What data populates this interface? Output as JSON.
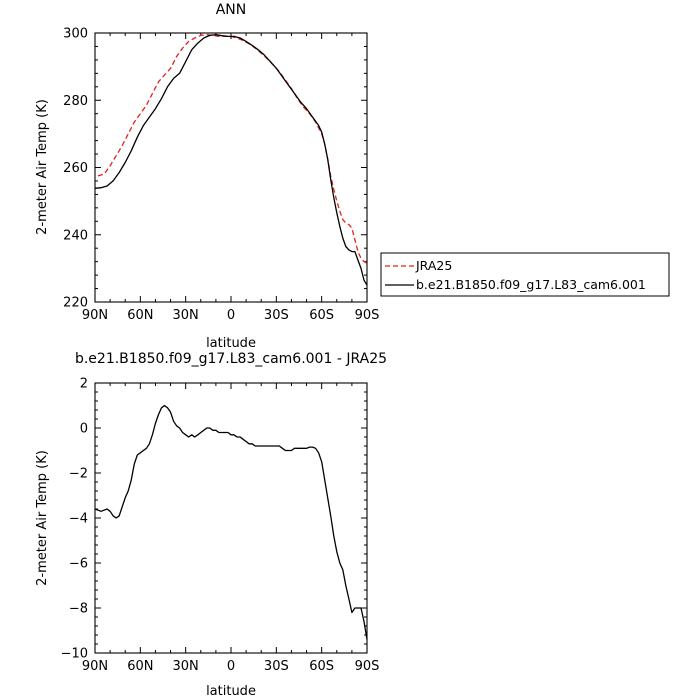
{
  "chart_data": [
    {
      "type": "line",
      "title": "ANN",
      "xlabel": "latitude",
      "ylabel": "2-meter Air Temp (K)",
      "xlim": [
        90,
        -90
      ],
      "ylim": [
        220,
        300
      ],
      "x_ticks": [
        90,
        60,
        30,
        0,
        -30,
        -60,
        -90
      ],
      "x_tick_labels": [
        "90N",
        "60N",
        "30N",
        "0",
        "30S",
        "60S",
        "90S"
      ],
      "y_ticks": [
        220,
        240,
        260,
        280,
        300
      ],
      "y_tick_labels": [
        "220",
        "240",
        "260",
        "280",
        "300"
      ],
      "legend": {
        "placement": "right-bottom"
      },
      "series": [
        {
          "name": "JRA25",
          "color": "#e3211c",
          "dash": "dashed",
          "x": [
            88,
            84,
            80,
            76,
            72,
            68,
            64,
            60,
            56,
            52,
            48,
            44,
            40,
            36,
            32,
            28,
            24,
            20,
            16,
            12,
            8,
            4,
            0,
            -4,
            -8,
            -12,
            -16,
            -20,
            -24,
            -28,
            -32,
            -36,
            -40,
            -44,
            -48,
            -52,
            -56,
            -60,
            -62,
            -64,
            -66,
            -68,
            -70,
            -72,
            -74,
            -76,
            -78,
            -80,
            -82,
            -84,
            -86,
            -88,
            -90
          ],
          "y": [
            257.5,
            258.0,
            260.5,
            263.5,
            266.5,
            270.0,
            273.5,
            276.0,
            278.5,
            282.0,
            285.5,
            287.5,
            289.5,
            293.0,
            295.5,
            297.5,
            298.5,
            299.3,
            299.5,
            299.3,
            299.0,
            299.0,
            299.0,
            298.5,
            297.8,
            296.8,
            295.5,
            294.0,
            292.3,
            290.5,
            288.5,
            286.0,
            283.5,
            280.5,
            278.0,
            276.0,
            273.5,
            270.0,
            267.0,
            262.5,
            257.5,
            253.5,
            250.0,
            247.0,
            244.5,
            243.5,
            243.0,
            242.0,
            238.5,
            235.0,
            233.0,
            232.0,
            231.5
          ]
        },
        {
          "name": "b.e21.B1850.f09_g17.L83_cam6.001",
          "color": "#000000",
          "dash": "solid",
          "x": [
            90,
            86,
            82,
            78,
            74,
            70,
            66,
            62,
            58,
            54,
            50,
            46,
            42,
            38,
            34,
            30,
            26,
            22,
            18,
            14,
            10,
            6,
            2,
            -2,
            -6,
            -10,
            -14,
            -18,
            -22,
            -26,
            -30,
            -34,
            -38,
            -42,
            -46,
            -50,
            -54,
            -58,
            -60,
            -62,
            -64,
            -66,
            -68,
            -70,
            -72,
            -74,
            -76,
            -78,
            -80,
            -82,
            -84,
            -86,
            -88,
            -90
          ],
          "y": [
            253.8,
            254.0,
            254.5,
            256.0,
            258.5,
            261.5,
            265.0,
            269.0,
            272.5,
            275.0,
            277.5,
            280.5,
            284.0,
            286.5,
            288.0,
            291.5,
            295.0,
            297.0,
            298.5,
            299.3,
            299.5,
            299.2,
            299.0,
            299.0,
            298.5,
            297.5,
            296.3,
            295.0,
            293.5,
            291.5,
            289.5,
            287.0,
            284.5,
            282.0,
            279.5,
            277.5,
            275.0,
            272.5,
            270.5,
            267.0,
            262.5,
            256.5,
            251.0,
            246.5,
            242.5,
            239.0,
            236.5,
            235.5,
            235.0,
            235.0,
            232.5,
            230.0,
            226.5,
            225.0
          ]
        }
      ]
    },
    {
      "type": "line",
      "title": "b.e21.B1850.f09_g17.L83_cam6.001 - JRA25",
      "xlabel": "latitude",
      "ylabel": "2-meter Air Temp (K)",
      "xlim": [
        90,
        -90
      ],
      "ylim": [
        -10,
        2
      ],
      "x_ticks": [
        90,
        60,
        30,
        0,
        -30,
        -60,
        -90
      ],
      "x_tick_labels": [
        "90N",
        "60N",
        "30N",
        "0",
        "30S",
        "60S",
        "90S"
      ],
      "y_ticks": [
        -10,
        -8,
        -6,
        -4,
        -2,
        0,
        2
      ],
      "y_tick_labels": [
        "−10",
        "−8",
        "−6",
        "−4",
        "−2",
        "0",
        "2"
      ],
      "series": [
        {
          "color": "#000000",
          "dash": "solid",
          "x": [
            90,
            86,
            82,
            80,
            78,
            76,
            74,
            72,
            70,
            68,
            66,
            64,
            62,
            60,
            58,
            56,
            54,
            52,
            50,
            48,
            46,
            44,
            42,
            40,
            38,
            36,
            34,
            32,
            30,
            28,
            26,
            24,
            22,
            20,
            18,
            16,
            14,
            12,
            10,
            8,
            6,
            4,
            2,
            0,
            -2,
            -4,
            -6,
            -8,
            -10,
            -12,
            -14,
            -16,
            -18,
            -20,
            -22,
            -24,
            -26,
            -28,
            -30,
            -32,
            -34,
            -36,
            -38,
            -40,
            -42,
            -44,
            -46,
            -48,
            -50,
            -52,
            -54,
            -56,
            -58,
            -60,
            -62,
            -64,
            -66,
            -68,
            -70,
            -72,
            -74,
            -76,
            -78,
            -80,
            -82,
            -84,
            -86,
            -88,
            -90
          ],
          "y": [
            -3.6,
            -3.7,
            -3.6,
            -3.7,
            -3.9,
            -4.0,
            -3.9,
            -3.5,
            -3.1,
            -2.8,
            -2.3,
            -1.6,
            -1.2,
            -1.1,
            -1.0,
            -0.9,
            -0.7,
            -0.3,
            0.2,
            0.6,
            0.9,
            1.0,
            0.9,
            0.7,
            0.3,
            0.1,
            0.0,
            -0.2,
            -0.3,
            -0.4,
            -0.3,
            -0.4,
            -0.3,
            -0.2,
            -0.1,
            0.0,
            0.0,
            -0.1,
            -0.1,
            -0.2,
            -0.2,
            -0.2,
            -0.2,
            -0.3,
            -0.3,
            -0.4,
            -0.4,
            -0.5,
            -0.6,
            -0.7,
            -0.7,
            -0.8,
            -0.8,
            -0.8,
            -0.8,
            -0.8,
            -0.8,
            -0.8,
            -0.8,
            -0.8,
            -0.9,
            -1.0,
            -1.0,
            -1.0,
            -0.9,
            -0.9,
            -0.9,
            -0.9,
            -0.9,
            -0.85,
            -0.85,
            -0.9,
            -1.1,
            -1.5,
            -2.3,
            -3.1,
            -3.9,
            -4.8,
            -5.5,
            -6.0,
            -6.3,
            -7.0,
            -7.6,
            -8.2,
            -8.0,
            -8.0,
            -8.0,
            -8.6,
            -9.4
          ]
        }
      ]
    }
  ]
}
